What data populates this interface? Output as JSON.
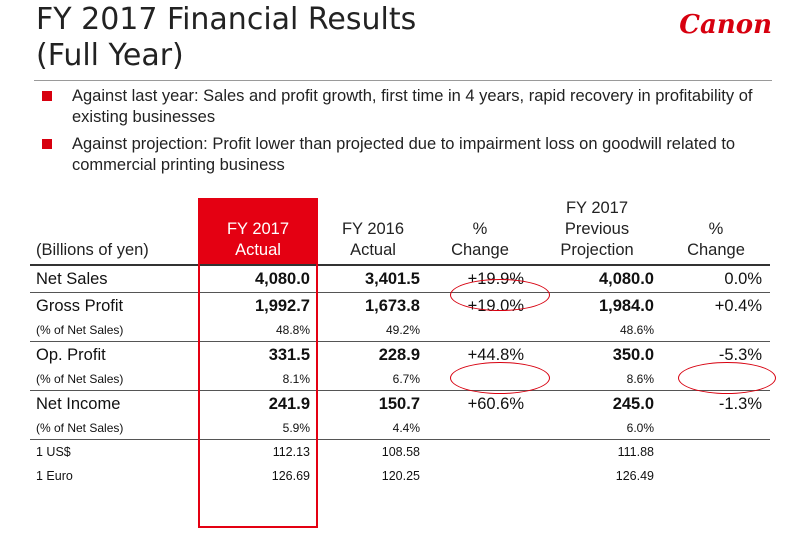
{
  "slide": {
    "title_line1": "FY 2017 Financial Results",
    "title_line2": "(Full Year)",
    "logo_text": "Canon"
  },
  "bullets": [
    "Against last year: Sales and profit growth, first time in 4 years, rapid recovery in profitability of existing businesses",
    "Against projection: Profit lower than projected due to impairment loss on goodwill related to commercial printing business"
  ],
  "table": {
    "headers": {
      "label": "(Billions of yen)",
      "actual_2017": [
        "FY 2017",
        "Actual"
      ],
      "actual_2016": [
        "FY 2016",
        "Actual"
      ],
      "pct_change": [
        "%",
        "Change"
      ],
      "projection": [
        "FY 2017",
        "Previous",
        "Projection"
      ],
      "pct_change_proj": [
        "%",
        "Change"
      ]
    },
    "rows": [
      {
        "label": "Net Sales",
        "fy2017": "4,080.0",
        "fy2016": "3,401.5",
        "change": "+19.9%",
        "projection": "4,080.0",
        "change_proj": "0.0%"
      },
      {
        "label": "Gross Profit",
        "fy2017": "1,992.7",
        "fy2016": "1,673.8",
        "change": "+19.0%",
        "projection": "1,984.0",
        "change_proj": "+0.4%"
      },
      {
        "label": "(% of Net Sales)",
        "fy2017": "48.8%",
        "fy2016": "49.2%",
        "change": "",
        "projection": "48.6%",
        "change_proj": ""
      },
      {
        "label": "Op. Profit",
        "fy2017": "331.5",
        "fy2016": "228.9",
        "change": "+44.8%",
        "projection": "350.0",
        "change_proj": "-5.3%"
      },
      {
        "label": "(% of Net Sales)",
        "fy2017": "8.1%",
        "fy2016": "6.7%",
        "change": "",
        "projection": "8.6%",
        "change_proj": ""
      },
      {
        "label": "Net Income",
        "fy2017": "241.9",
        "fy2016": "150.7",
        "change": "+60.6%",
        "projection": "245.0",
        "change_proj": "-1.3%"
      },
      {
        "label": "(% of Net Sales)",
        "fy2017": "5.9%",
        "fy2016": "4.4%",
        "change": "",
        "projection": "6.0%",
        "change_proj": ""
      },
      {
        "label": "1 US$",
        "fy2017": "112.13",
        "fy2016": "108.58",
        "change": "",
        "projection": "111.88",
        "change_proj": ""
      },
      {
        "label": "1 Euro",
        "fy2017": "126.69",
        "fy2016": "120.25",
        "change": "",
        "projection": "126.49",
        "change_proj": ""
      }
    ]
  },
  "colors": {
    "brand_red": "#d7000f",
    "highlight_header": "#e40012",
    "text": "#222222"
  }
}
